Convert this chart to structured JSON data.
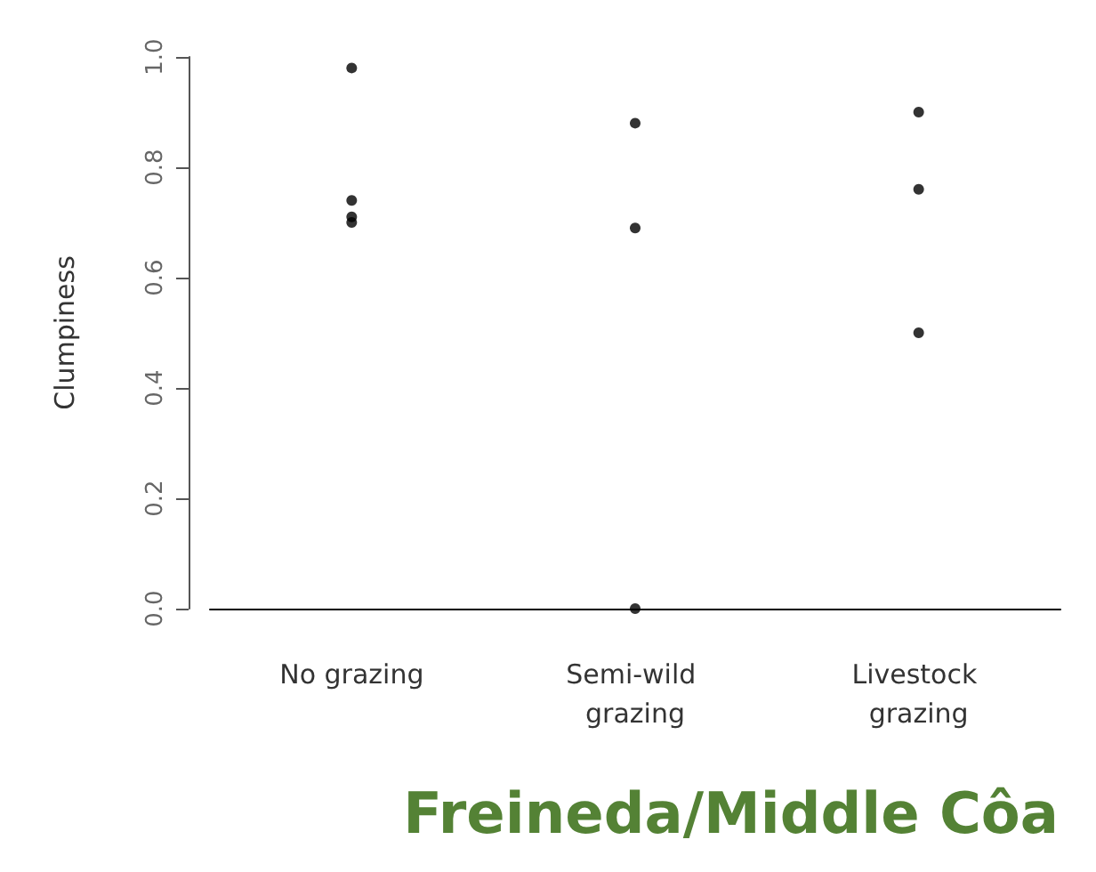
{
  "chart_data": {
    "type": "scatter",
    "title": "Freineda/Middle Côa",
    "ylabel": "Clumpiness",
    "categories": [
      "No grazing",
      "Semi-wild grazing",
      "Livestock grazing"
    ],
    "series": [
      {
        "color": "#000000",
        "x": [
          "No grazing",
          "No grazing",
          "No grazing",
          "No grazing",
          "Semi-wild grazing",
          "Semi-wild grazing",
          "Semi-wild grazing",
          "Livestock grazing",
          "Livestock grazing",
          "Livestock grazing"
        ],
        "values": [
          0.98,
          0.74,
          0.71,
          0.7,
          0.88,
          0.69,
          0.0,
          0.9,
          0.76,
          0.5
        ]
      }
    ],
    "ylim": [
      0,
      1
    ],
    "yticks": [
      {
        "value": 0,
        "label": "0.0"
      },
      {
        "value": 0.2,
        "label": "0.2"
      },
      {
        "value": 0.4,
        "label": "0.4"
      },
      {
        "value": 0.6,
        "label": "0.6"
      },
      {
        "value": 0.8,
        "label": "0.8"
      },
      {
        "value": 1,
        "label": "1.0"
      }
    ],
    "grid": false,
    "marker": "circle"
  }
}
